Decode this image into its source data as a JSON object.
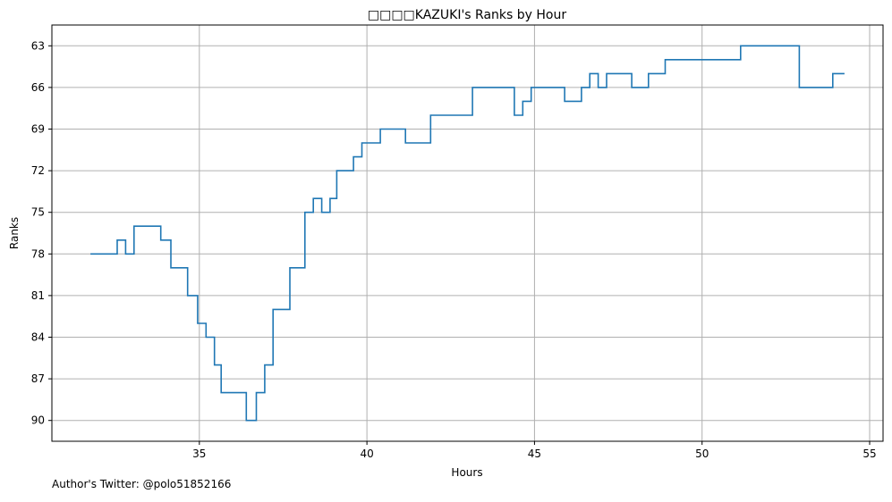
{
  "chart_data": {
    "type": "line",
    "title": "□□□□KAZUKI's Ranks by Hour",
    "xlabel": "Hours",
    "ylabel": "Ranks",
    "xlim": [
      30.6,
      55.4
    ],
    "ylim": [
      91.5,
      61.5
    ],
    "y_inverted": true,
    "xticks": [
      35,
      40,
      45,
      50,
      55
    ],
    "yticks": [
      63,
      66,
      69,
      72,
      75,
      78,
      81,
      84,
      87,
      90
    ],
    "grid": true,
    "line_color": "#1f77b4",
    "drawstyle": "steps-post",
    "series": [
      {
        "x": [
          31.75,
          32.55,
          32.8,
          33.05,
          33.85,
          34.15,
          34.65,
          34.95,
          35.2,
          35.45,
          35.65,
          36.4,
          36.7,
          36.95,
          37.2,
          37.7,
          38.15,
          38.4,
          38.65,
          38.9,
          39.1,
          39.6,
          39.85,
          40.4,
          41.15,
          41.9,
          43.15,
          44.4,
          44.65,
          44.9,
          45.9,
          46.4,
          46.65,
          46.9,
          47.15,
          47.9,
          48.4,
          48.9,
          51.15,
          52.9,
          53.9,
          54.25
        ],
        "y": [
          78,
          77,
          78,
          76,
          77,
          79,
          81,
          83,
          84,
          86,
          88,
          90,
          88,
          86,
          82,
          79,
          75,
          74,
          75,
          74,
          72,
          71,
          70,
          69,
          70,
          68,
          66,
          68,
          67,
          66,
          67,
          66,
          65,
          66,
          65,
          66,
          65,
          64,
          63,
          66,
          65,
          65
        ]
      }
    ]
  },
  "footer_text": "Author's Twitter: @polo51852166"
}
